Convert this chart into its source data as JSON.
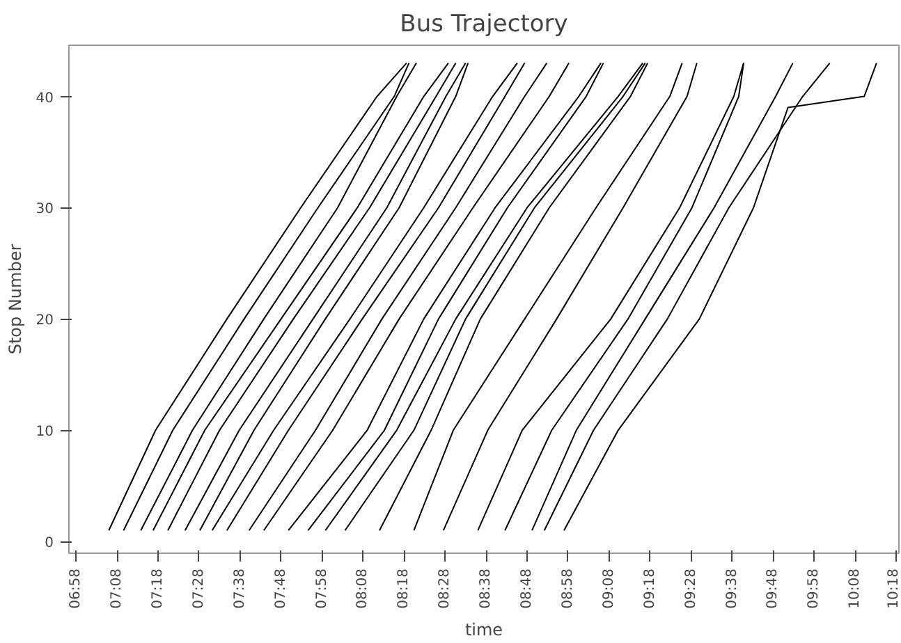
{
  "chart_data": {
    "type": "line",
    "title": "Bus Trajectory",
    "xlabel": "time",
    "ylabel": "Stop Number",
    "xlim": [
      6.938,
      10.311
    ],
    "ylim": [
      -1.05,
      44.6
    ],
    "xticks": [
      {
        "value": 6.9667,
        "label": "06:58"
      },
      {
        "value": 7.1333,
        "label": "07:08"
      },
      {
        "value": 7.3,
        "label": "07:18"
      },
      {
        "value": 7.4667,
        "label": "07:28"
      },
      {
        "value": 7.6333,
        "label": "07:38"
      },
      {
        "value": 7.8,
        "label": "07:48"
      },
      {
        "value": 7.9667,
        "label": "07:58"
      },
      {
        "value": 8.1333,
        "label": "08:08"
      },
      {
        "value": 8.3,
        "label": "08:18"
      },
      {
        "value": 8.4667,
        "label": "08:28"
      },
      {
        "value": 8.6333,
        "label": "08:38"
      },
      {
        "value": 8.8,
        "label": "08:48"
      },
      {
        "value": 8.9667,
        "label": "08:58"
      },
      {
        "value": 9.1333,
        "label": "09:08"
      },
      {
        "value": 9.3,
        "label": "09:18"
      },
      {
        "value": 9.4667,
        "label": "09:28"
      },
      {
        "value": 9.6333,
        "label": "09:38"
      },
      {
        "value": 9.8,
        "label": "09:48"
      },
      {
        "value": 9.9667,
        "label": "09:58"
      },
      {
        "value": 10.1333,
        "label": "10:08"
      },
      {
        "value": 10.3,
        "label": "10:18"
      }
    ],
    "yticks": [
      0,
      10,
      20,
      30,
      40
    ],
    "grid": false,
    "marker": "none",
    "line_style": "solid",
    "series": [
      {
        "color": "#000000",
        "x": [
          7.1,
          7.29,
          7.58,
          7.88,
          8.19,
          8.31
        ],
        "values": [
          1,
          10,
          20,
          30,
          40,
          43
        ]
      },
      {
        "color": "#000000",
        "x": [
          7.16,
          7.36,
          7.65,
          7.95,
          8.26,
          8.32
        ],
        "values": [
          1,
          10,
          20,
          30,
          40,
          43
        ]
      },
      {
        "color": "#000000",
        "x": [
          7.23,
          7.44,
          7.73,
          8.03,
          8.27,
          8.35
        ],
        "values": [
          1,
          10,
          20,
          30,
          40,
          43
        ]
      },
      {
        "color": "#000000",
        "x": [
          7.28,
          7.49,
          7.8,
          8.11,
          8.38,
          8.48
        ],
        "values": [
          1,
          10,
          20,
          30,
          40,
          43
        ]
      },
      {
        "color": "#000000",
        "x": [
          7.34,
          7.55,
          7.85,
          8.16,
          8.43,
          8.51
        ],
        "values": [
          1,
          10,
          20,
          30,
          40,
          43
        ]
      },
      {
        "color": "#000000",
        "x": [
          7.41,
          7.63,
          7.93,
          8.23,
          8.47,
          8.55
        ],
        "values": [
          1,
          10,
          20,
          30,
          40,
          43
        ]
      },
      {
        "color": "#000000",
        "x": [
          7.47,
          7.69,
          7.98,
          8.28,
          8.51,
          8.56
        ],
        "values": [
          1,
          10,
          20,
          30,
          40,
          43
        ]
      },
      {
        "color": "#000000",
        "x": [
          7.52,
          7.77,
          8.08,
          8.38,
          8.66,
          8.76
        ],
        "values": [
          1,
          10,
          20,
          30,
          40,
          43
        ]
      },
      {
        "color": "#000000",
        "x": [
          7.58,
          7.83,
          8.13,
          8.44,
          8.71,
          8.79
        ],
        "values": [
          1,
          10,
          20,
          30,
          40,
          43
        ]
      },
      {
        "color": "#000000",
        "x": [
          7.67,
          7.94,
          8.21,
          8.51,
          8.79,
          8.88
        ],
        "values": [
          1,
          10,
          20,
          30,
          40,
          43
        ]
      },
      {
        "color": "#000000",
        "x": [
          7.73,
          8.01,
          8.28,
          8.58,
          8.89,
          8.97
        ],
        "values": [
          1,
          10,
          20,
          30,
          40,
          43
        ]
      },
      {
        "color": "#000000",
        "x": [
          7.83,
          8.15,
          8.38,
          8.67,
          9.01,
          9.1
        ],
        "values": [
          1,
          10,
          20,
          30,
          40,
          43
        ]
      },
      {
        "color": "#000000",
        "x": [
          7.91,
          8.22,
          8.44,
          8.72,
          9.04,
          9.11
        ],
        "values": [
          1,
          10,
          20,
          30,
          40,
          43
        ]
      },
      {
        "color": "#000000",
        "x": [
          7.98,
          8.27,
          8.51,
          8.8,
          9.17,
          9.27
        ],
        "values": [
          1,
          10,
          20,
          30,
          40,
          43
        ]
      },
      {
        "color": "#000000",
        "x": [
          8.06,
          8.34,
          8.55,
          8.83,
          9.19,
          9.28
        ],
        "values": [
          1,
          10,
          20,
          30,
          40,
          43
        ]
      },
      {
        "color": "#000000",
        "x": [
          8.2,
          8.41,
          8.61,
          8.89,
          9.22,
          9.29
        ],
        "values": [
          1,
          10,
          20,
          30,
          40,
          43
        ]
      },
      {
        "color": "#000000",
        "x": [
          8.34,
          8.5,
          8.79,
          9.08,
          9.38,
          9.43
        ],
        "values": [
          1,
          10,
          20,
          30,
          40,
          43
        ]
      },
      {
        "color": "#000000",
        "x": [
          8.46,
          8.64,
          8.92,
          9.19,
          9.45,
          9.49
        ],
        "values": [
          1,
          10,
          20,
          30,
          40,
          43
        ]
      },
      {
        "color": "#000000",
        "x": [
          8.6,
          8.78,
          9.14,
          9.42,
          9.64,
          9.68
        ],
        "values": [
          1,
          10,
          20,
          30,
          40,
          43
        ]
      },
      {
        "color": "#000000",
        "x": [
          8.71,
          8.9,
          9.21,
          9.47,
          9.66,
          9.68
        ],
        "values": [
          1,
          10,
          20,
          30,
          40,
          43
        ]
      },
      {
        "color": "#000000",
        "x": [
          8.82,
          9.0,
          9.28,
          9.56,
          9.81,
          9.88
        ],
        "values": [
          1,
          10,
          20,
          30,
          40,
          43
        ]
      },
      {
        "color": "#000000",
        "x": [
          8.87,
          9.07,
          9.37,
          9.62,
          9.92,
          10.03
        ],
        "values": [
          1,
          10,
          20,
          30,
          40,
          43
        ]
      },
      {
        "color": "#000000",
        "x": [
          8.95,
          9.17,
          9.5,
          9.72,
          9.86,
          10.17,
          10.22
        ],
        "values": [
          1,
          10,
          20,
          30,
          39,
          40,
          43
        ]
      }
    ]
  }
}
